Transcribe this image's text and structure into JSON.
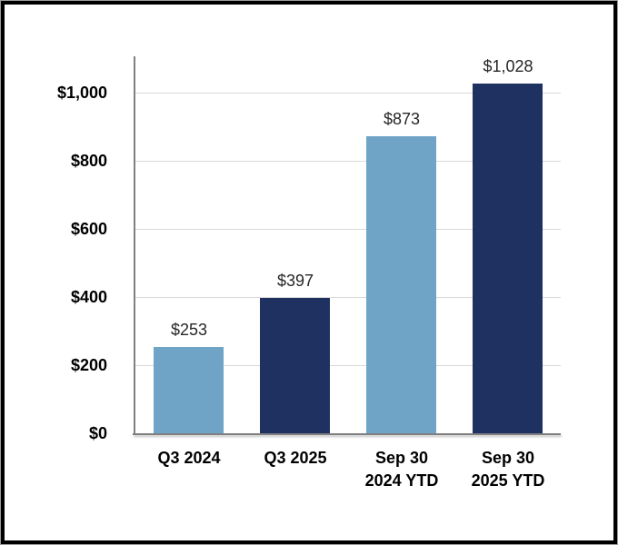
{
  "chart_data": {
    "type": "bar",
    "title": "",
    "xlabel": "",
    "ylabel": "",
    "categories": [
      "Q3 2024",
      "Q3 2025",
      "Sep 30\n2024 YTD",
      "Sep 30\n2025 YTD"
    ],
    "values": [
      253,
      397,
      873,
      1028
    ],
    "data_labels": [
      "$253",
      "$397",
      "$873",
      "$1,028"
    ],
    "bar_colors": [
      "#6FA4C7",
      "#1F3160",
      "#6FA4C7",
      "#1F3160"
    ],
    "ylim": [
      0,
      1100
    ],
    "y_ticks": [
      0,
      200,
      400,
      600,
      800,
      1000
    ],
    "y_tick_labels": [
      "$0",
      "$200",
      "$400",
      "$600",
      "$800",
      "$1,000"
    ],
    "grid": "horizontal",
    "legend_position": "none"
  },
  "colors": {
    "bar_light_blue": "#6FA4C7",
    "bar_navy": "#1F3160",
    "gridline": "#D9D9D9",
    "axis_line": "#808080",
    "tick_text": "#000000",
    "data_label_text": "#262626",
    "frame_border": "#000000",
    "background": "#FFFFFF"
  }
}
